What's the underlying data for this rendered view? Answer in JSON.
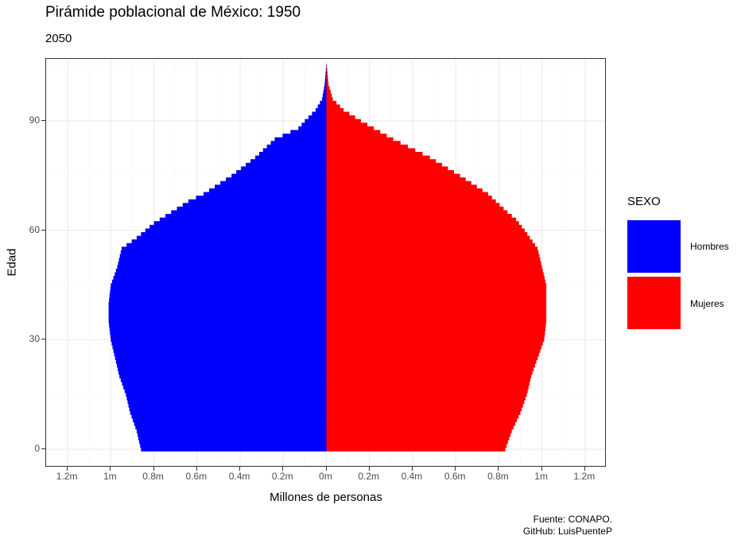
{
  "title": "Pirámide poblacional de México: 1950",
  "subtitle": "2050",
  "caption": [
    "Fuente: CONAPO.",
    "GitHub: LuisPuenteP"
  ],
  "colors": {
    "Hombres": "#0000ff",
    "Mujeres": "#ff0000",
    "grid": "#ebebeb",
    "grid_minor": "#f5f5f5"
  },
  "chart_data": {
    "type": "bar",
    "orientation": "horizontal",
    "xlabel": "Millones de personas",
    "ylabel": "Edad",
    "xlim": [
      -1.3,
      1.3
    ],
    "ylim": [
      -5,
      107
    ],
    "x_ticks": [
      -1.2,
      -1.0,
      -0.8,
      -0.6,
      -0.4,
      -0.2,
      0,
      0.2,
      0.4,
      0.6,
      0.8,
      1.0,
      1.2
    ],
    "x_tick_labels": [
      "1.2m",
      "1m",
      "0.8m",
      "0.6m",
      "0.4m",
      "0.2m",
      "0m",
      "0.2m",
      "0.4m",
      "0.6m",
      "0.8m",
      "1m",
      "1.2m"
    ],
    "y_ticks": [
      0,
      30,
      60,
      90
    ],
    "y_tick_labels": [
      "0",
      "30",
      "60",
      "90"
    ],
    "legend": {
      "title": "SEXO",
      "position": "right",
      "entries": [
        "Hombres",
        "Mujeres"
      ]
    },
    "grid": true,
    "anchors": {
      "Hombres": [
        [
          0,
          0.86
        ],
        [
          5,
          0.88
        ],
        [
          10,
          0.91
        ],
        [
          15,
          0.93
        ],
        [
          20,
          0.96
        ],
        [
          25,
          0.98
        ],
        [
          30,
          1.0
        ],
        [
          35,
          1.01
        ],
        [
          40,
          1.01
        ],
        [
          45,
          1.0
        ],
        [
          50,
          0.97
        ],
        [
          55,
          0.95
        ],
        [
          58,
          0.88
        ],
        [
          60,
          0.84
        ],
        [
          62,
          0.8
        ],
        [
          65,
          0.72
        ],
        [
          68,
          0.64
        ],
        [
          70,
          0.57
        ],
        [
          75,
          0.44
        ],
        [
          80,
          0.33
        ],
        [
          85,
          0.24
        ],
        [
          88,
          0.13
        ],
        [
          90,
          0.1
        ],
        [
          93,
          0.05
        ],
        [
          96,
          0.02
        ],
        [
          100,
          0.008
        ],
        [
          105,
          0.001
        ]
      ],
      "Mujeres": [
        [
          0,
          0.83
        ],
        [
          5,
          0.86
        ],
        [
          10,
          0.9
        ],
        [
          15,
          0.93
        ],
        [
          20,
          0.95
        ],
        [
          25,
          0.98
        ],
        [
          30,
          1.01
        ],
        [
          35,
          1.02
        ],
        [
          40,
          1.02
        ],
        [
          45,
          1.02
        ],
        [
          50,
          1.0
        ],
        [
          55,
          0.98
        ],
        [
          60,
          0.92
        ],
        [
          63,
          0.88
        ],
        [
          65,
          0.84
        ],
        [
          70,
          0.75
        ],
        [
          75,
          0.62
        ],
        [
          80,
          0.48
        ],
        [
          85,
          0.31
        ],
        [
          90,
          0.16
        ],
        [
          93,
          0.08
        ],
        [
          96,
          0.03
        ],
        [
          100,
          0.01
        ],
        [
          105,
          0.002
        ]
      ]
    }
  }
}
